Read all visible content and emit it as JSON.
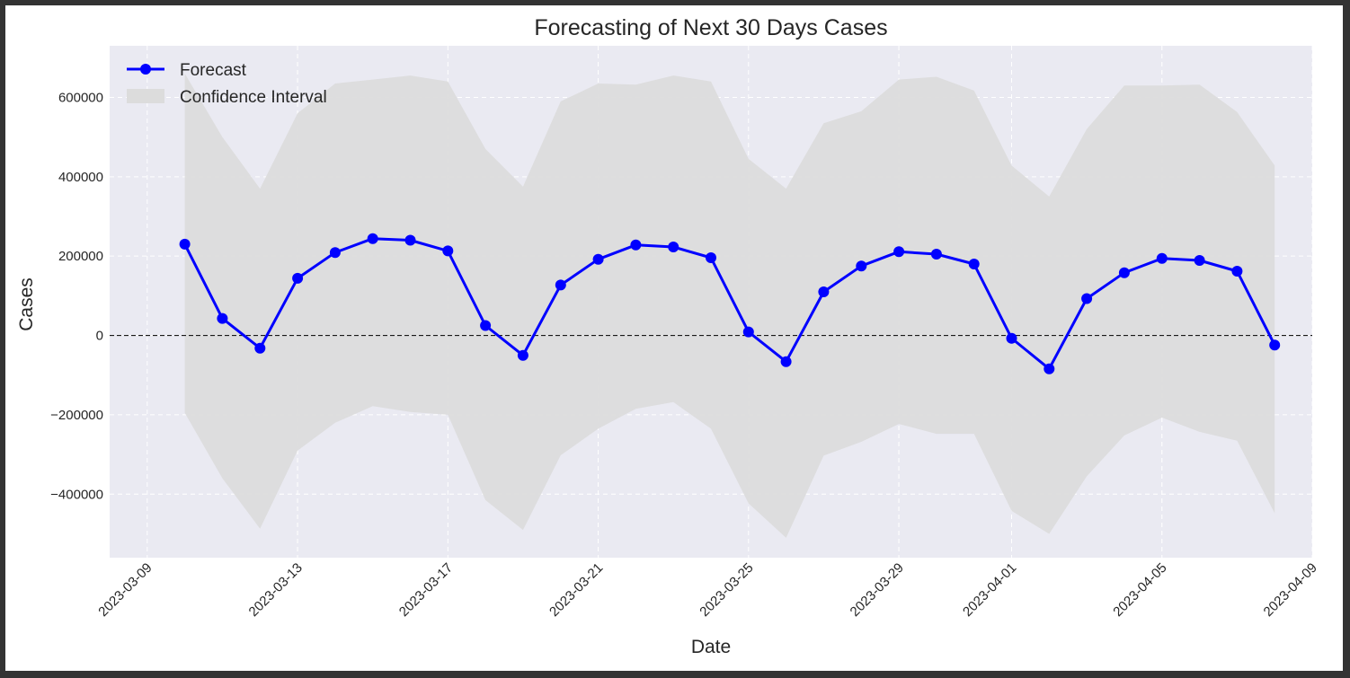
{
  "chart_data": {
    "type": "line",
    "title": "Forecasting of Next 30 Days Cases",
    "xlabel": "Date",
    "ylabel": "Cases",
    "x_tick_labels": [
      "2023-03-09",
      "2023-03-13",
      "2023-03-17",
      "2023-03-21",
      "2023-03-25",
      "2023-03-29",
      "2023-04-01",
      "2023-04-05",
      "2023-04-09"
    ],
    "y_tick_labels": [
      "600000",
      "400000",
      "200000",
      "0",
      "−200000",
      "−400000"
    ],
    "y_ticks": [
      600000,
      400000,
      200000,
      0,
      -200000,
      -400000
    ],
    "ylim": [
      -560000,
      730000
    ],
    "xlim": [
      "2023-03-08",
      "2023-04-09"
    ],
    "x": [
      "2023-03-10",
      "2023-03-11",
      "2023-03-12",
      "2023-03-13",
      "2023-03-14",
      "2023-03-15",
      "2023-03-16",
      "2023-03-17",
      "2023-03-18",
      "2023-03-19",
      "2023-03-20",
      "2023-03-21",
      "2023-03-22",
      "2023-03-23",
      "2023-03-24",
      "2023-03-25",
      "2023-03-26",
      "2023-03-27",
      "2023-03-28",
      "2023-03-29",
      "2023-03-30",
      "2023-03-31",
      "2023-04-01",
      "2023-04-02",
      "2023-04-03",
      "2023-04-04",
      "2023-04-05",
      "2023-04-06",
      "2023-04-07",
      "2023-04-08"
    ],
    "series": [
      {
        "name": "Forecast",
        "color": "#0000ff",
        "values": [
          230000,
          43000,
          -32000,
          144000,
          209000,
          244000,
          240000,
          213000,
          25000,
          -50000,
          127000,
          192000,
          228000,
          223000,
          196000,
          9000,
          -66000,
          110000,
          175000,
          211000,
          205000,
          180000,
          -7000,
          -84000,
          93000,
          158000,
          194000,
          189000,
          162000,
          -24000
        ]
      }
    ],
    "confidence_interval": {
      "name": "Confidence Interval",
      "color": "#dcdcdc",
      "upper": [
        660000,
        500000,
        370000,
        560000,
        635000,
        645000,
        655000,
        640000,
        470000,
        375000,
        590000,
        635000,
        632000,
        655000,
        640000,
        445000,
        370000,
        535000,
        565000,
        645000,
        652000,
        617000,
        428000,
        350000,
        520000,
        630000,
        630000,
        632000,
        563000,
        428000
      ],
      "lower": [
        -195000,
        -360000,
        -487000,
        -290000,
        -220000,
        -178000,
        -193000,
        -200000,
        -415000,
        -490000,
        -302000,
        -235000,
        -185000,
        -168000,
        -235000,
        -423000,
        -510000,
        -303000,
        -268000,
        -223000,
        -248000,
        -248000,
        -442000,
        -500000,
        -355000,
        -252000,
        -207000,
        -243000,
        -265000,
        -448000
      ]
    },
    "zero_line": 0,
    "grid": true,
    "legend_position": "top-left"
  }
}
